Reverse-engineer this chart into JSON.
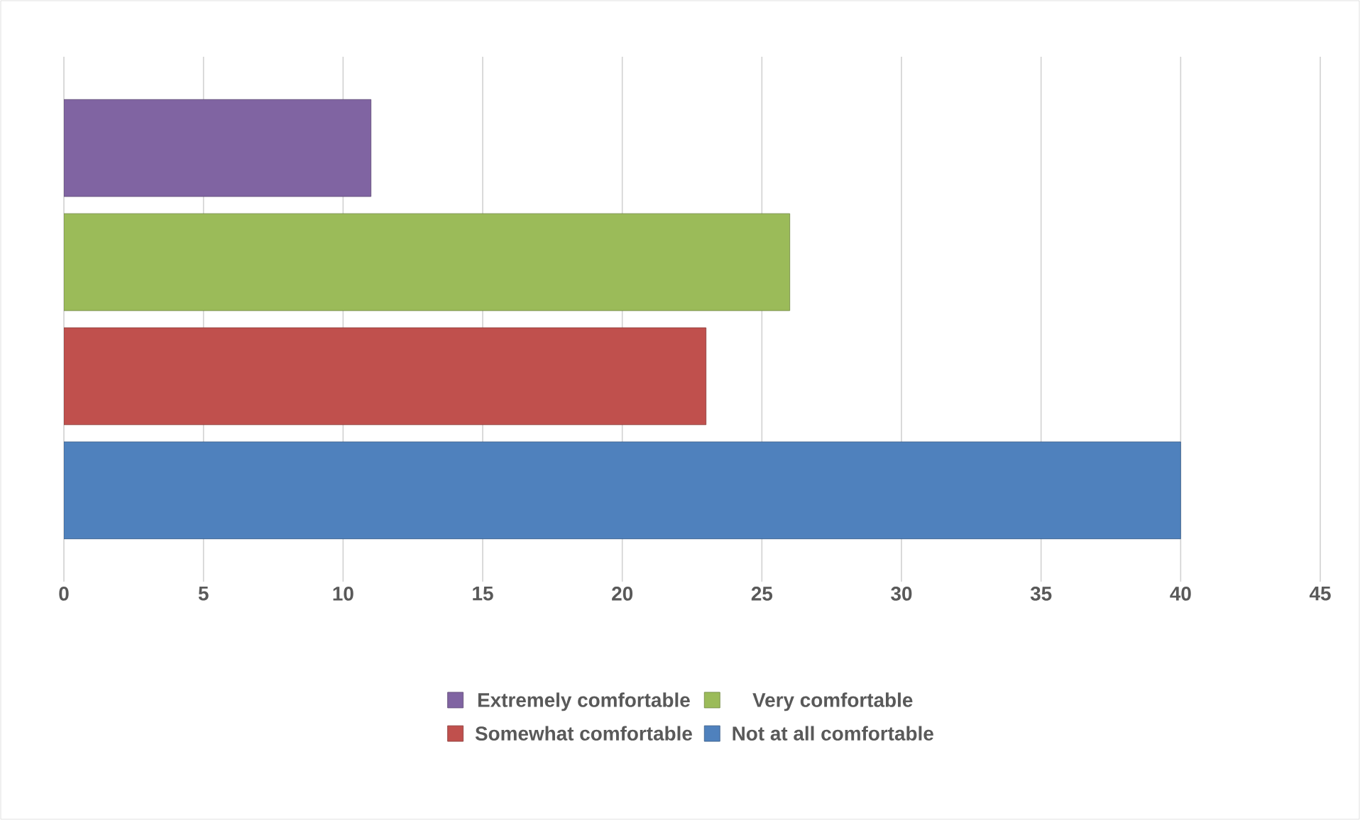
{
  "chart_data": {
    "type": "bar",
    "orientation": "horizontal",
    "categories": [
      null
    ],
    "series": [
      {
        "name": "Extremely comfortable",
        "color": "#8064a2",
        "values": [
          11
        ]
      },
      {
        "name": "Very comfortable",
        "color": "#9bbb59",
        "values": [
          26
        ]
      },
      {
        "name": "Somewhat comfortable",
        "color": "#c0504d",
        "values": [
          23
        ]
      },
      {
        "name": "Not at all comfortable",
        "color": "#4f81bd",
        "values": [
          40
        ]
      }
    ],
    "xlim": [
      0,
      45
    ],
    "xticks": [
      0,
      5,
      10,
      15,
      20,
      25,
      30,
      35,
      40,
      45
    ],
    "grid": "x",
    "legend": "bottom"
  }
}
